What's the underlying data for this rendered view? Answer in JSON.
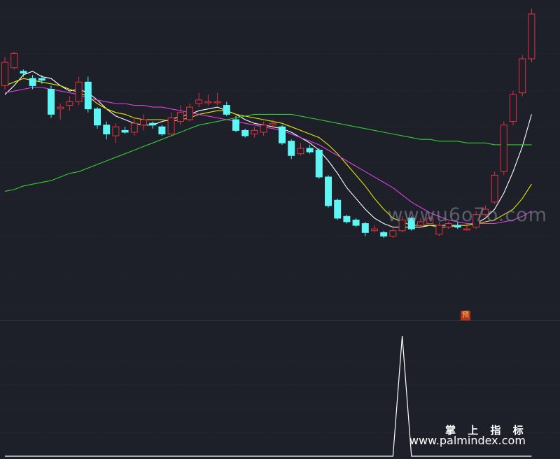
{
  "watermarks": {
    "site": "wwwu6o7o.com",
    "title": "掌 上 指 标",
    "url": "www.palmindex.com"
  },
  "badge": "预",
  "colors": {
    "background": "#1d1f29",
    "up": "#e0333f",
    "down": "#5ef5f5",
    "ma_fast": "#ffffff",
    "ma_yellow": "#e8e800",
    "ma_magenta": "#e040e0",
    "ma_green": "#33cc33",
    "indicator": "#ffffff",
    "grid": "#2c2f3a"
  },
  "chart_data": [
    {
      "type": "candlestick",
      "title": "",
      "xlabel": "",
      "ylabel": "",
      "ylim": [
        0,
        100
      ],
      "grid": true,
      "note_price_scale": "no axis labels shown; values in relative units",
      "candles": [
        {
          "o": 80,
          "c": 93,
          "h": 96,
          "l": 78
        },
        {
          "o": 90,
          "c": 98,
          "h": 99,
          "l": 89
        },
        {
          "o": 88,
          "c": 87,
          "h": 89,
          "l": 85
        },
        {
          "o": 84,
          "c": 80,
          "h": 86,
          "l": 78
        },
        {
          "o": 84,
          "c": 83,
          "h": 86,
          "l": 81
        },
        {
          "o": 78,
          "c": 64,
          "h": 80,
          "l": 62
        },
        {
          "o": 67,
          "c": 68,
          "h": 70,
          "l": 61
        },
        {
          "o": 69,
          "c": 71,
          "h": 74,
          "l": 66
        },
        {
          "o": 71,
          "c": 82,
          "h": 85,
          "l": 69
        },
        {
          "o": 82,
          "c": 67,
          "h": 85,
          "l": 65
        },
        {
          "o": 67,
          "c": 58,
          "h": 68,
          "l": 56
        },
        {
          "o": 58,
          "c": 53,
          "h": 60,
          "l": 50
        },
        {
          "o": 52,
          "c": 57,
          "h": 59,
          "l": 48
        },
        {
          "o": 55,
          "c": 54,
          "h": 57,
          "l": 53
        },
        {
          "o": 54,
          "c": 59,
          "h": 62,
          "l": 52
        },
        {
          "o": 58,
          "c": 61,
          "h": 64,
          "l": 55
        },
        {
          "o": 59,
          "c": 58,
          "h": 60,
          "l": 56
        },
        {
          "o": 57,
          "c": 53,
          "h": 58,
          "l": 52
        },
        {
          "o": 53,
          "c": 62,
          "h": 65,
          "l": 52
        },
        {
          "o": 60,
          "c": 65,
          "h": 69,
          "l": 58
        },
        {
          "o": 61,
          "c": 68,
          "h": 70,
          "l": 60
        },
        {
          "o": 70,
          "c": 72,
          "h": 76,
          "l": 68
        },
        {
          "o": 71,
          "c": 71,
          "h": 75,
          "l": 69
        },
        {
          "o": 71,
          "c": 71,
          "h": 76,
          "l": 69
        },
        {
          "o": 69,
          "c": 64,
          "h": 71,
          "l": 63
        },
        {
          "o": 61,
          "c": 55,
          "h": 63,
          "l": 54
        },
        {
          "o": 55,
          "c": 52,
          "h": 56,
          "l": 51
        },
        {
          "o": 53,
          "c": 55,
          "h": 57,
          "l": 51
        },
        {
          "o": 54,
          "c": 58,
          "h": 60,
          "l": 52
        },
        {
          "o": 58,
          "c": 59,
          "h": 61,
          "l": 56
        },
        {
          "o": 57,
          "c": 48,
          "h": 58,
          "l": 47
        },
        {
          "o": 49,
          "c": 41,
          "h": 50,
          "l": 39
        },
        {
          "o": 42,
          "c": 45,
          "h": 48,
          "l": 41
        },
        {
          "o": 45,
          "c": 43,
          "h": 47,
          "l": 42
        },
        {
          "o": 44,
          "c": 29,
          "h": 45,
          "l": 28
        },
        {
          "o": 29,
          "c": 13,
          "h": 30,
          "l": 12
        },
        {
          "o": 16,
          "c": 6,
          "h": 17,
          "l": 5
        },
        {
          "o": 7,
          "c": 4,
          "h": 8,
          "l": 3
        },
        {
          "o": 5,
          "c": 2,
          "h": 6,
          "l": 1
        },
        {
          "o": 3,
          "c": -2,
          "h": 4,
          "l": -4
        },
        {
          "o": -1,
          "c": 0,
          "h": 2,
          "l": -2
        },
        {
          "o": -2,
          "c": -4,
          "h": -1,
          "l": -5
        },
        {
          "o": -4,
          "c": -1,
          "h": 1,
          "l": -5
        },
        {
          "o": -1,
          "c": 5,
          "h": 7,
          "l": -2
        },
        {
          "o": 6,
          "c": 0,
          "h": 7,
          "l": -1
        },
        {
          "o": 2,
          "c": 4,
          "h": 6,
          "l": 1
        },
        {
          "o": 3,
          "c": 6,
          "h": 7,
          "l": 2
        },
        {
          "o": -3,
          "c": 2,
          "h": 4,
          "l": -4
        },
        {
          "o": 1,
          "c": 3,
          "h": 4,
          "l": 0
        },
        {
          "o": 2,
          "c": 1,
          "h": 4,
          "l": 0
        },
        {
          "o": 0,
          "c": 0,
          "h": 3,
          "l": -1
        },
        {
          "o": 1,
          "c": 8,
          "h": 10,
          "l": 0
        },
        {
          "o": 8,
          "c": 11,
          "h": 13,
          "l": 7
        },
        {
          "o": 15,
          "c": 30,
          "h": 32,
          "l": 14
        },
        {
          "o": 32,
          "c": 58,
          "h": 60,
          "l": 30
        },
        {
          "o": 60,
          "c": 75,
          "h": 77,
          "l": 58
        },
        {
          "o": 76,
          "c": 95,
          "h": 97,
          "l": 74
        },
        {
          "o": 95,
          "c": 120,
          "h": 123,
          "l": 93
        }
      ],
      "series": [
        {
          "color": "#ffffff",
          "values": [
            75,
            80,
            86,
            88,
            85,
            84,
            80,
            77,
            78,
            76,
            72,
            67,
            63,
            61,
            59,
            58,
            58,
            60,
            61,
            63,
            64,
            66,
            67,
            68,
            66,
            64,
            61,
            59,
            58,
            57,
            56,
            54,
            51,
            48,
            44,
            38,
            31,
            23,
            17,
            11,
            6,
            3,
            1,
            1,
            1,
            1,
            2,
            2,
            2,
            2,
            2,
            3,
            6,
            11,
            20,
            32,
            46,
            64
          ]
        },
        {
          "color": "#e8e800",
          "values": [
            80,
            82,
            84,
            83,
            82,
            81,
            80,
            78,
            76,
            74,
            70,
            67,
            65,
            64,
            62,
            61,
            61,
            61,
            60,
            61,
            62,
            64,
            65,
            66,
            66,
            64,
            63,
            62,
            61,
            60,
            59,
            57,
            55,
            53,
            51,
            47,
            42,
            36,
            30,
            24,
            17,
            11,
            6,
            4,
            2,
            2,
            2,
            1,
            1,
            2,
            2,
            3,
            4,
            5,
            8,
            11,
            17,
            25
          ]
        },
        {
          "color": "#e040e0",
          "values": [
            76,
            77,
            78,
            79,
            79,
            78,
            77,
            76,
            75,
            73,
            72,
            71,
            70,
            70,
            69,
            69,
            68,
            68,
            67,
            66,
            65,
            64,
            63,
            62,
            61,
            60,
            59,
            58,
            57,
            56,
            55,
            53,
            51,
            49,
            47,
            44,
            41,
            38,
            35,
            32,
            29,
            26,
            23,
            19,
            15,
            12,
            9,
            7,
            5,
            4,
            3,
            3,
            3,
            3,
            4,
            5,
            7,
            10
          ]
        },
        {
          "color": "#33cc33",
          "values": [
            21,
            22,
            24,
            25,
            26,
            27,
            29,
            31,
            32,
            34,
            36,
            38,
            40,
            42,
            44,
            46,
            48,
            50,
            52,
            54,
            56,
            58,
            59,
            60,
            61,
            62,
            63,
            64,
            64,
            64,
            64,
            64,
            63,
            62,
            61,
            60,
            59,
            58,
            57,
            56,
            55,
            54,
            53,
            52,
            51,
            50,
            50,
            49,
            49,
            49,
            48,
            48,
            48,
            47,
            47,
            47,
            47,
            47
          ]
        }
      ]
    },
    {
      "type": "line",
      "title": "",
      "xlabel": "",
      "ylabel": "",
      "ylim": [
        0,
        100
      ],
      "grid": true,
      "series": [
        {
          "color": "#ffffff",
          "values": [
            0,
            0,
            0,
            0,
            0,
            0,
            0,
            0,
            0,
            0,
            0,
            0,
            0,
            0,
            0,
            0,
            0,
            0,
            0,
            0,
            0,
            0,
            0,
            0,
            0,
            0,
            0,
            0,
            0,
            0,
            0,
            0,
            0,
            0,
            0,
            0,
            0,
            0,
            0,
            0,
            0,
            0,
            0,
            100,
            0,
            0,
            0,
            0,
            0,
            0,
            0,
            0,
            0,
            0,
            0,
            0,
            0,
            0
          ]
        }
      ]
    }
  ]
}
